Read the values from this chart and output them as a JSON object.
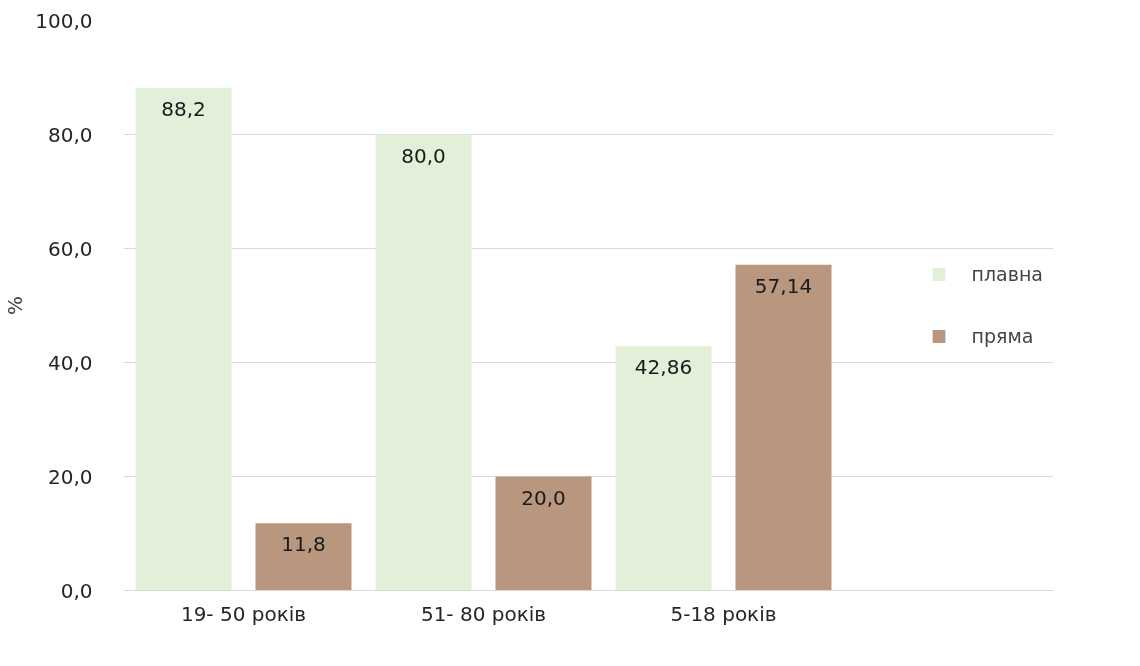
{
  "chart_data": {
    "type": "bar",
    "ylabel": "%",
    "categories": [
      "19- 50 років",
      "51- 80 років",
      "5-18 років"
    ],
    "series": [
      {
        "name": "плавна",
        "color": "#e2efd9",
        "values": [
          88.2,
          80.0,
          42.86
        ],
        "value_labels": [
          "88,2",
          "80,0",
          "42,86"
        ]
      },
      {
        "name": "пряма",
        "color": "#b8977e",
        "values": [
          11.8,
          20.0,
          57.14
        ],
        "value_labels": [
          "11,8",
          "20,0",
          "57,14"
        ]
      }
    ],
    "ylim": [
      0,
      100
    ],
    "yticks": [
      {
        "value": 0,
        "label": "0,0"
      },
      {
        "value": 20,
        "label": "20,0"
      },
      {
        "value": 40,
        "label": "40,0"
      },
      {
        "value": 60,
        "label": "60,0"
      },
      {
        "value": 80,
        "label": "80,0"
      },
      {
        "value": 100,
        "label": "100,0"
      }
    ],
    "grid": "y",
    "legend": "right"
  }
}
